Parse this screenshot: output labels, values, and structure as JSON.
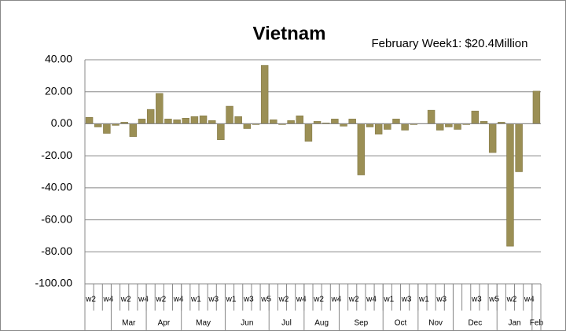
{
  "chart_data": {
    "type": "bar",
    "title": "Vietnam",
    "annotation": "February Week1: $20.4Million",
    "color": "#9b8f55",
    "grid": true,
    "ylim": [
      -100,
      40
    ],
    "yticks": [
      {
        "value": -100,
        "label": "-100.00"
      },
      {
        "value": -80,
        "label": "-80.00"
      },
      {
        "value": -60,
        "label": "-60.00"
      },
      {
        "value": -40,
        "label": "-40.00"
      },
      {
        "value": -20,
        "label": "-20.00"
      },
      {
        "value": 0,
        "label": "0.00"
      },
      {
        "value": 20,
        "label": "20.00"
      },
      {
        "value": 40,
        "label": "40.00"
      }
    ],
    "categories": [
      "w2",
      null,
      "w4",
      null,
      "w2",
      null,
      "w4",
      null,
      "w2",
      null,
      "w4",
      null,
      "w1",
      null,
      "w3",
      null,
      "w1",
      null,
      "w3",
      null,
      "w5",
      null,
      "w2",
      null,
      "w4",
      null,
      "w2",
      null,
      "w4",
      null,
      "w2",
      null,
      "w4",
      null,
      "w1",
      null,
      "w3",
      null,
      "w1",
      null,
      "w3",
      null,
      null,
      null,
      "w3",
      null,
      "w5",
      null,
      "w2",
      null,
      "w4",
      null
    ],
    "values": [
      4,
      -2,
      -6,
      -1,
      1,
      -8,
      3,
      9,
      19,
      3,
      2.5,
      3.5,
      4.5,
      5,
      2,
      -10,
      11,
      4.5,
      -3,
      -0.5,
      36.5,
      2.5,
      -0.5,
      2,
      5,
      -11,
      1.5,
      0.5,
      3,
      -1.5,
      3,
      -32,
      -2,
      -6.5,
      -3.5,
      3,
      -4,
      -0.5,
      0,
      8.5,
      -4,
      -2,
      -3.5,
      -0.5,
      8,
      1.5,
      -18,
      1,
      -76.5,
      -30,
      0,
      20.4
    ],
    "month_groups": [
      {
        "label": null,
        "count": 3
      },
      {
        "label": "Mar",
        "count": 4
      },
      {
        "label": "Apr",
        "count": 4
      },
      {
        "label": "May",
        "count": 5
      },
      {
        "label": "Jun",
        "count": 5
      },
      {
        "label": "Jul",
        "count": 4
      },
      {
        "label": "Aug",
        "count": 4
      },
      {
        "label": "Sep",
        "count": 5
      },
      {
        "label": "Oct",
        "count": 4
      },
      {
        "label": "Nov",
        "count": 4
      },
      {
        "label": "Dec",
        "count": 5
      },
      {
        "label": "Jan",
        "count": 4
      },
      {
        "label": "Feb",
        "count": 1
      }
    ]
  }
}
